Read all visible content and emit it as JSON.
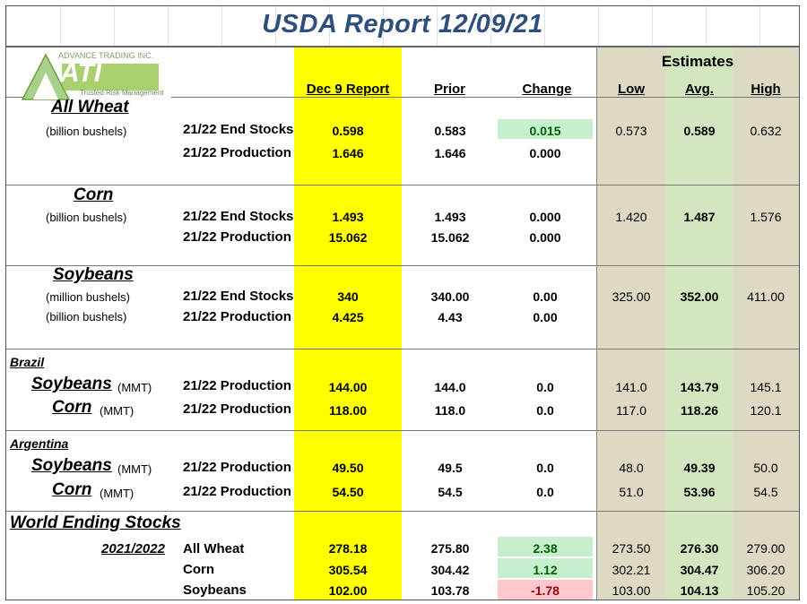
{
  "title": "USDA Report 12/09/21",
  "logo": {
    "company": "ADVANCE TRADING INC.",
    "initials": "ATI",
    "tagline": "Trusted Risk Management"
  },
  "headers": {
    "report": "Dec 9 Report",
    "prior": "Prior",
    "change": "Change",
    "estimates": "Estimates",
    "low": "Low",
    "avg": "Avg.",
    "high": "High"
  },
  "wheat": {
    "name": "All Wheat",
    "unit": "(billion bushels)",
    "rows": [
      {
        "label": "21/22 End Stocks",
        "report": "0.598",
        "prior": "0.583",
        "change": "0.015",
        "low": "0.573",
        "avg": "0.589",
        "high": "0.632"
      },
      {
        "label": "21/22 Production",
        "report": "1.646",
        "prior": "1.646",
        "change": "0.000"
      }
    ]
  },
  "corn": {
    "name": "Corn",
    "unit": "(billion bushels)",
    "rows": [
      {
        "label": "21/22 End Stocks",
        "report": "1.493",
        "prior": "1.493",
        "change": "0.000",
        "low": "1.420",
        "avg": "1.487",
        "high": "1.576"
      },
      {
        "label": "21/22 Production",
        "report": "15.062",
        "prior": "15.062",
        "change": "0.000"
      }
    ]
  },
  "soybeans": {
    "name": "Soybeans",
    "unit1": "(million bushels)",
    "unit2": "(billion bushels)",
    "rows": [
      {
        "label": "21/22 End Stocks",
        "report": "340",
        "prior": "340.00",
        "change": "0.00",
        "low": "325.00",
        "avg": "352.00",
        "high": "411.00"
      },
      {
        "label": "21/22 Production",
        "report": "4.425",
        "prior": "4.43",
        "change": "0.00"
      }
    ]
  },
  "brazil": {
    "name": "Brazil",
    "rows": [
      {
        "crop": "Soybeans",
        "unit": "(MMT)",
        "label": "21/22 Production",
        "report": "144.00",
        "prior": "144.0",
        "change": "0.0",
        "low": "141.0",
        "avg": "143.79",
        "high": "145.1"
      },
      {
        "crop": "Corn",
        "unit": "(MMT)",
        "label": "21/22 Production",
        "report": "118.00",
        "prior": "118.0",
        "change": "0.0",
        "low": "117.0",
        "avg": "118.26",
        "high": "120.1"
      }
    ]
  },
  "argentina": {
    "name": "Argentina",
    "rows": [
      {
        "crop": "Soybeans",
        "unit": "(MMT)",
        "label": "21/22 Production",
        "report": "49.50",
        "prior": "49.5",
        "change": "0.0",
        "low": "48.0",
        "avg": "49.39",
        "high": "50.0"
      },
      {
        "crop": "Corn",
        "unit": "(MMT)",
        "label": "21/22 Production",
        "report": "54.50",
        "prior": "54.5",
        "change": "0.0",
        "low": "51.0",
        "avg": "53.96",
        "high": "54.5"
      }
    ]
  },
  "world": {
    "name": "World Ending Stocks",
    "year": "2021/2022",
    "rows": [
      {
        "label": "All Wheat",
        "report": "278.18",
        "prior": "275.80",
        "change": "2.38",
        "low": "273.50",
        "avg": "276.30",
        "high": "279.00"
      },
      {
        "label": "Corn",
        "report": "305.54",
        "prior": "304.42",
        "change": "1.12",
        "low": "302.21",
        "avg": "304.47",
        "high": "306.20"
      },
      {
        "label": "Soybeans",
        "report": "102.00",
        "prior": "103.78",
        "change": "-1.78",
        "low": "103.00",
        "avg": "104.13",
        "high": "105.20"
      }
    ]
  },
  "colors": {
    "title": "#2e4f7c",
    "report_band": "#ffff00",
    "estimates_band": "#ddd9c3",
    "avg_band": "#d3e6bf",
    "positive": "#c6efce",
    "negative": "#ffc7ce",
    "logo_green": "#8cbf3f"
  }
}
